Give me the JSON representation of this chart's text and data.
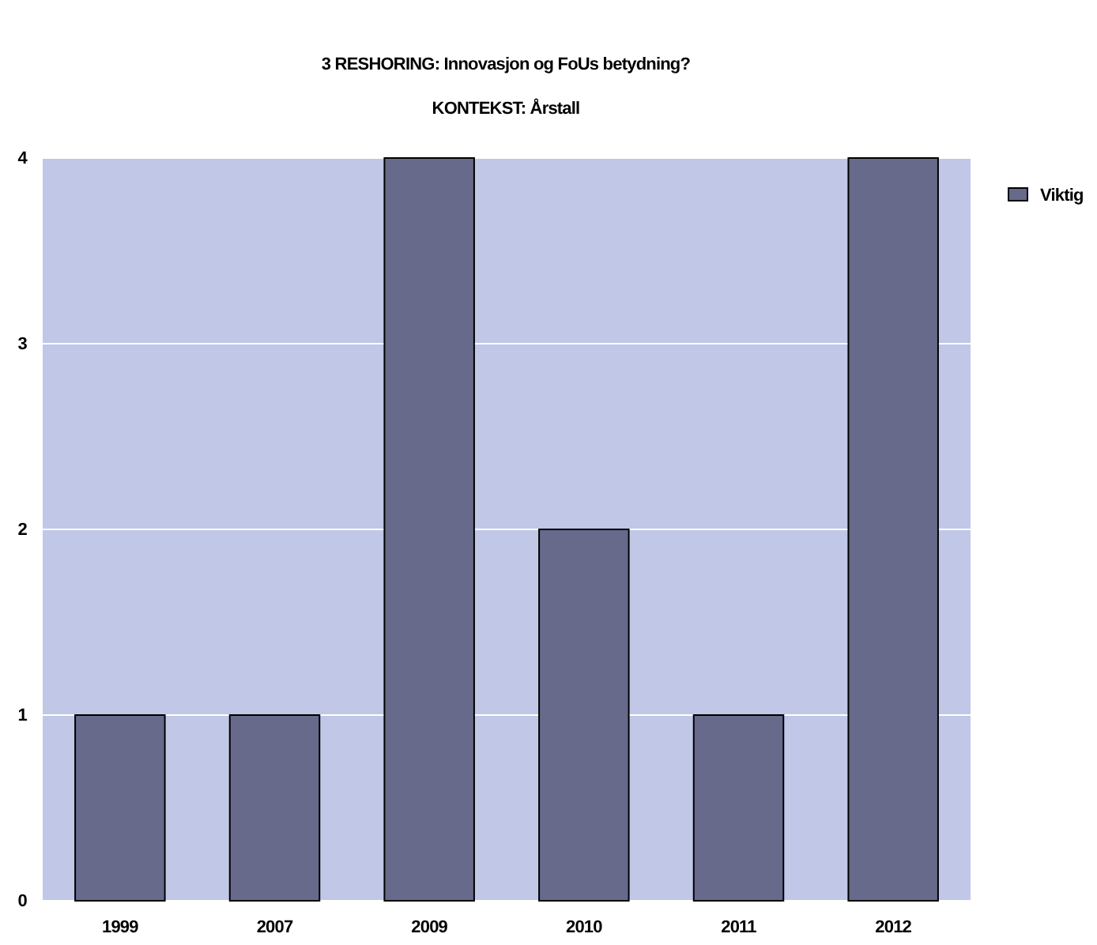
{
  "chart_data": {
    "type": "bar",
    "title": "3 RESHORING: Innovasjon og FoUs betydning?",
    "subtitle": "KONTEKST: Årstall",
    "categories": [
      "1999",
      "2007",
      "2009",
      "2010",
      "2011",
      "2012"
    ],
    "series": [
      {
        "name": "Viktig",
        "color": "#686a8b",
        "values": [
          1,
          1,
          4,
          2,
          1,
          4
        ]
      }
    ],
    "ylim": [
      0,
      4
    ],
    "yticks": [
      0,
      1,
      2,
      3,
      4
    ],
    "grid": "y",
    "legend": "top right"
  }
}
